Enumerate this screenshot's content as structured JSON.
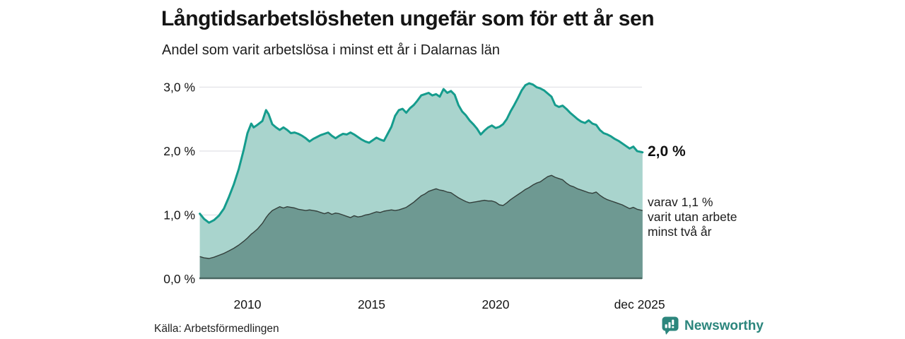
{
  "header": {
    "title": "Långtidsarbetslösheten ungefär som för ett år sen",
    "subtitle": "Andel som varit arbetslösa i minst ett år i Dalarnas län"
  },
  "annotations": {
    "total_end_label": "2,0 %",
    "sub_lines": [
      "varav 1,1 %",
      "varit utan arbete",
      "minst två år"
    ]
  },
  "footer": {
    "source": "Källa: Arbetsförmedlingen",
    "brand": "Newsworthy"
  },
  "colors": {
    "line_total": "#159c8d",
    "fill_total": "#a9d4cd",
    "line_two_years": "#333f3b",
    "fill_two_years": "#6e9992",
    "baseline": "#4a6862",
    "gridline": "#e2e2e7",
    "brand_teal": "#2c867d",
    "text": "#141414"
  },
  "chart_data": {
    "type": "area",
    "title": "Långtidsarbetslösheten ungefär som för ett år sen",
    "subtitle": "Andel som varit arbetslösa i minst ett år i Dalarnas län",
    "source": "Källa: Arbetsförmedlingen",
    "unit": "%",
    "grid": true,
    "legend_position": "end-of-line annotations",
    "xlim": [
      2008.08,
      2025.92
    ],
    "ylim": [
      0,
      3.3
    ],
    "yticks": [
      {
        "value": 0,
        "label": "0,0 %"
      },
      {
        "value": 1,
        "label": "1,0 %"
      },
      {
        "value": 2,
        "label": "2,0 %"
      },
      {
        "value": 3,
        "label": "3,0 %"
      }
    ],
    "xticks": [
      {
        "value": 2010,
        "label": "2010"
      },
      {
        "value": 2015,
        "label": "2015"
      },
      {
        "value": 2020,
        "label": "2020"
      },
      {
        "value": 2025.8,
        "label": "dec 2025"
      }
    ],
    "x": [
      2008.08,
      2008.25,
      2008.45,
      2008.65,
      2008.85,
      2009.05,
      2009.25,
      2009.45,
      2009.65,
      2009.85,
      2010.0,
      2010.15,
      2010.25,
      2010.4,
      2010.6,
      2010.75,
      2010.85,
      2011.0,
      2011.15,
      2011.3,
      2011.45,
      2011.6,
      2011.75,
      2011.9,
      2012.05,
      2012.2,
      2012.35,
      2012.5,
      2012.65,
      2012.8,
      2012.95,
      2013.1,
      2013.25,
      2013.4,
      2013.55,
      2013.7,
      2013.85,
      2014.0,
      2014.15,
      2014.3,
      2014.45,
      2014.6,
      2014.75,
      2014.9,
      2015.05,
      2015.2,
      2015.35,
      2015.5,
      2015.65,
      2015.8,
      2015.95,
      2016.1,
      2016.25,
      2016.4,
      2016.55,
      2016.7,
      2016.85,
      2017.0,
      2017.15,
      2017.3,
      2017.45,
      2017.6,
      2017.75,
      2017.9,
      2018.05,
      2018.2,
      2018.35,
      2018.5,
      2018.65,
      2018.8,
      2018.95,
      2019.1,
      2019.25,
      2019.4,
      2019.55,
      2019.7,
      2019.85,
      2020.0,
      2020.15,
      2020.3,
      2020.45,
      2020.6,
      2020.75,
      2020.9,
      2021.05,
      2021.2,
      2021.35,
      2021.5,
      2021.65,
      2021.8,
      2021.95,
      2022.1,
      2022.25,
      2022.4,
      2022.55,
      2022.7,
      2022.85,
      2023.0,
      2023.15,
      2023.3,
      2023.45,
      2023.6,
      2023.75,
      2023.9,
      2024.05,
      2024.2,
      2024.35,
      2024.5,
      2024.65,
      2024.8,
      2024.95,
      2025.1,
      2025.25,
      2025.4,
      2025.55,
      2025.7,
      2025.92
    ],
    "series": [
      {
        "name": "Andel som varit arbetslösa i minst ett år",
        "end_label": "2,0 %",
        "line_color": "#159c8d",
        "fill_color": "#a9d4cd",
        "values": [
          1.02,
          0.94,
          0.88,
          0.92,
          0.99,
          1.1,
          1.28,
          1.48,
          1.72,
          2.02,
          2.28,
          2.43,
          2.37,
          2.41,
          2.47,
          2.64,
          2.58,
          2.42,
          2.37,
          2.33,
          2.37,
          2.33,
          2.28,
          2.29,
          2.27,
          2.24,
          2.2,
          2.15,
          2.19,
          2.22,
          2.25,
          2.27,
          2.29,
          2.24,
          2.2,
          2.24,
          2.27,
          2.26,
          2.29,
          2.26,
          2.22,
          2.18,
          2.15,
          2.13,
          2.17,
          2.21,
          2.18,
          2.16,
          2.27,
          2.38,
          2.55,
          2.64,
          2.66,
          2.6,
          2.67,
          2.72,
          2.79,
          2.87,
          2.89,
          2.91,
          2.87,
          2.89,
          2.85,
          2.97,
          2.91,
          2.94,
          2.88,
          2.72,
          2.62,
          2.56,
          2.48,
          2.42,
          2.35,
          2.26,
          2.32,
          2.37,
          2.4,
          2.36,
          2.38,
          2.42,
          2.5,
          2.62,
          2.72,
          2.83,
          2.95,
          3.03,
          3.06,
          3.04,
          3.0,
          2.98,
          2.95,
          2.9,
          2.85,
          2.72,
          2.69,
          2.71,
          2.66,
          2.6,
          2.55,
          2.5,
          2.46,
          2.44,
          2.48,
          2.43,
          2.41,
          2.33,
          2.28,
          2.26,
          2.23,
          2.19,
          2.16,
          2.12,
          2.08,
          2.04,
          2.07,
          2.0,
          1.98
        ]
      },
      {
        "name": "varav varit utan arbete minst två år",
        "end_label": "1,1 %",
        "line_color": "#333f3b",
        "fill_color": "#6e9992",
        "values": [
          0.35,
          0.33,
          0.32,
          0.34,
          0.37,
          0.4,
          0.44,
          0.48,
          0.53,
          0.59,
          0.64,
          0.7,
          0.73,
          0.78,
          0.87,
          0.96,
          1.01,
          1.07,
          1.1,
          1.13,
          1.11,
          1.13,
          1.12,
          1.11,
          1.09,
          1.08,
          1.07,
          1.08,
          1.07,
          1.06,
          1.04,
          1.02,
          1.04,
          1.01,
          1.03,
          1.02,
          1.0,
          0.98,
          0.96,
          0.99,
          0.97,
          0.98,
          1.0,
          1.01,
          1.03,
          1.05,
          1.04,
          1.06,
          1.07,
          1.08,
          1.07,
          1.08,
          1.1,
          1.12,
          1.16,
          1.2,
          1.25,
          1.3,
          1.33,
          1.37,
          1.39,
          1.41,
          1.39,
          1.38,
          1.36,
          1.35,
          1.31,
          1.27,
          1.24,
          1.21,
          1.19,
          1.2,
          1.21,
          1.22,
          1.23,
          1.22,
          1.22,
          1.2,
          1.16,
          1.15,
          1.19,
          1.24,
          1.28,
          1.32,
          1.36,
          1.4,
          1.43,
          1.47,
          1.5,
          1.52,
          1.56,
          1.6,
          1.62,
          1.59,
          1.57,
          1.55,
          1.5,
          1.46,
          1.44,
          1.41,
          1.39,
          1.37,
          1.35,
          1.34,
          1.36,
          1.31,
          1.27,
          1.24,
          1.22,
          1.2,
          1.18,
          1.16,
          1.13,
          1.1,
          1.12,
          1.09,
          1.07
        ]
      }
    ]
  }
}
